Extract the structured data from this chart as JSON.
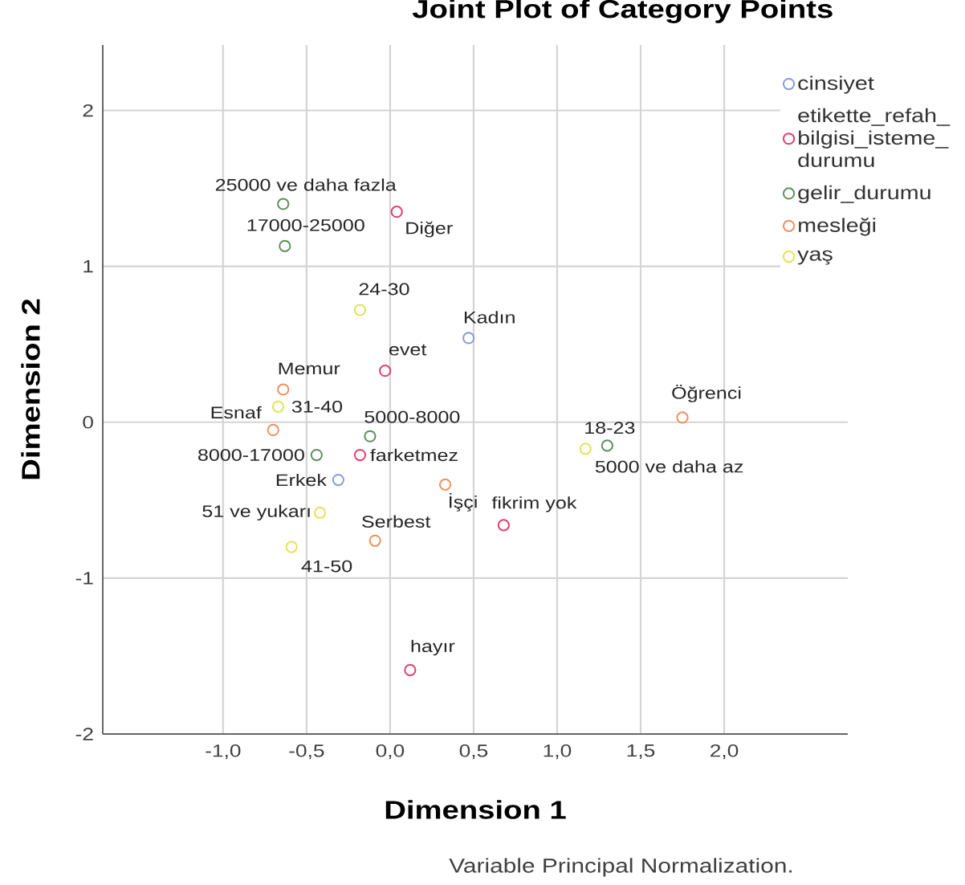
{
  "chart_data": {
    "type": "scatter",
    "title": "Joint Plot of Category Points",
    "xlabel": "Dimension 1",
    "ylabel": "Dimension 2",
    "series": [
      {
        "name": "cinsiyet",
        "color": "#8a9ae0",
        "x": [
          0.47,
          -0.31
        ],
        "values": [
          0.54,
          -0.37
        ]
      },
      {
        "name": "etikette_refah_bilgisi_isteme_durumu",
        "color": "#e2406e",
        "x": [
          0.04,
          -0.03,
          -0.18,
          0.68,
          0.12
        ],
        "values": [
          1.35,
          0.33,
          -0.21,
          -0.66,
          -1.59
        ]
      },
      {
        "name": "gelir_durumu",
        "color": "#5e905e",
        "x": [
          -0.64,
          -0.63,
          -0.12,
          -0.44,
          1.3
        ],
        "values": [
          1.4,
          1.13,
          -0.09,
          -0.21,
          -0.15
        ]
      },
      {
        "name": "mesleği",
        "color": "#f09060",
        "x": [
          -0.64,
          -0.7,
          0.33,
          -0.09,
          1.75
        ],
        "values": [
          0.21,
          -0.05,
          -0.4,
          -0.76,
          0.03
        ]
      },
      {
        "name": "yaş",
        "color": "#e2e25a",
        "x": [
          -0.18,
          -0.67,
          -0.42,
          -0.59,
          1.17
        ],
        "values": [
          0.72,
          0.1,
          -0.58,
          -0.8,
          -0.17
        ]
      }
    ],
    "xlim": [
      -1.72,
      2.74
    ],
    "ylim": [
      -2,
      2.42
    ],
    "xticks": [
      {
        "value": -1.0,
        "label": "-1,0"
      },
      {
        "value": -0.5,
        "label": "-0,5"
      },
      {
        "value": 0.0,
        "label": "0,0"
      },
      {
        "value": 0.5,
        "label": "0,5"
      },
      {
        "value": 1.0,
        "label": "1,0"
      },
      {
        "value": 1.5,
        "label": "1,5"
      },
      {
        "value": 2.0,
        "label": "2,0"
      }
    ],
    "yticks": [
      -2,
      -1,
      0,
      1,
      2
    ],
    "grid": true,
    "legend": "top right",
    "marker": "circle",
    "annotations": [
      "Variable Principal Normalization.",
      {
        "text": "Kadın",
        "x": 0.47,
        "y": 0.54
      },
      {
        "text": "Erkek",
        "x": -0.31,
        "y": -0.37
      },
      {
        "text": "Diğer",
        "x": 0.04,
        "y": 1.35
      },
      {
        "text": "evet",
        "x": -0.03,
        "y": 0.33
      },
      {
        "text": "farketmez",
        "x": -0.18,
        "y": -0.21
      },
      {
        "text": "fikrim yok",
        "x": 0.68,
        "y": -0.66
      },
      {
        "text": "hayır",
        "x": 0.12,
        "y": -1.59
      },
      {
        "text": "25000 ve daha fazla",
        "x": -0.64,
        "y": 1.4
      },
      {
        "text": "17000-25000",
        "x": -0.63,
        "y": 1.13
      },
      {
        "text": "5000-8000",
        "x": -0.12,
        "y": -0.09
      },
      {
        "text": "8000-17000",
        "x": -0.44,
        "y": -0.21
      },
      {
        "text": "5000 ve daha az",
        "x": 1.3,
        "y": -0.15
      },
      {
        "text": "Memur",
        "x": -0.64,
        "y": 0.21
      },
      {
        "text": "Esnaf",
        "x": -0.7,
        "y": -0.05
      },
      {
        "text": "İşçi",
        "x": 0.33,
        "y": -0.4
      },
      {
        "text": "Serbest",
        "x": -0.09,
        "y": -0.76
      },
      {
        "text": "Öğrenci",
        "x": 1.75,
        "y": 0.03
      },
      {
        "text": "24-30",
        "x": -0.18,
        "y": 0.72
      },
      {
        "text": "31-40",
        "x": -0.67,
        "y": 0.1
      },
      {
        "text": "51 ve yukarı",
        "x": -0.42,
        "y": -0.58
      },
      {
        "text": "41-50",
        "x": -0.59,
        "y": -0.8
      },
      {
        "text": "18-23",
        "x": 1.17,
        "y": -0.17
      }
    ]
  }
}
